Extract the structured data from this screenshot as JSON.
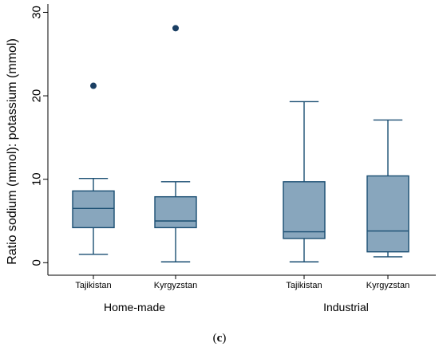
{
  "caption": {
    "open": "(",
    "letter": "c",
    "close": ")"
  },
  "chart_data": {
    "type": "box",
    "ylabel": "Ratio sodium (mmol): potassium (mmol)",
    "xlabel": "",
    "title": "",
    "ylim": [
      -1.5,
      31
    ],
    "yticks": [
      0,
      10,
      20,
      30
    ],
    "grid": false,
    "groups": [
      {
        "label": "Home-made",
        "categories": [
          "Tajikistan",
          "Kyrgyzstan"
        ]
      },
      {
        "label": "Industrial",
        "categories": [
          "Tajikistan",
          "Kyrgyzstan"
        ]
      }
    ],
    "boxes": [
      {
        "group": "Home-made",
        "category": "Tajikistan",
        "min": 1.0,
        "q1": 4.2,
        "median": 6.5,
        "q3": 8.6,
        "max": 10.1,
        "outliers": [
          21.2
        ]
      },
      {
        "group": "Home-made",
        "category": "Kyrgyzstan",
        "min": 0.1,
        "q1": 4.2,
        "median": 5.0,
        "q3": 7.9,
        "max": 9.7,
        "outliers": [
          28.1
        ]
      },
      {
        "group": "Industrial",
        "category": "Tajikistan",
        "min": 0.1,
        "q1": 2.9,
        "median": 3.7,
        "q3": 9.7,
        "max": 19.3,
        "outliers": []
      },
      {
        "group": "Industrial",
        "category": "Kyrgyzstan",
        "min": 0.7,
        "q1": 1.3,
        "median": 3.8,
        "q3": 10.4,
        "max": 17.1,
        "outliers": []
      }
    ],
    "colors": {
      "box_fill": "#88a6bd",
      "line": "#1a4e72",
      "outlier": "#1a3f63",
      "axis": "#000000"
    }
  }
}
